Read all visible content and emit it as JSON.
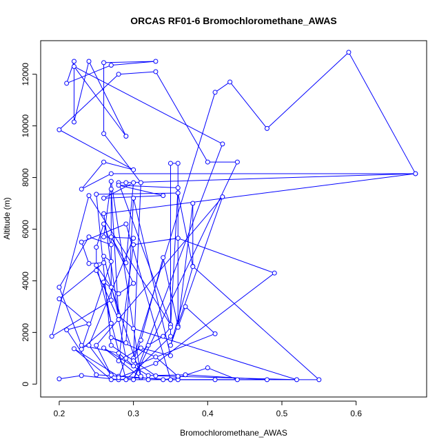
{
  "chart_data": {
    "type": "line",
    "title": "ORCAS RF01-6 Bromochloromethane_AWAS",
    "xlabel": "Bromochloromethane_AWAS",
    "ylabel": "Altitude (m)",
    "xlim": [
      0.175,
      0.695
    ],
    "ylim": [
      -500,
      13300
    ],
    "xticks": [
      0.2,
      0.3,
      0.4,
      0.5,
      0.6
    ],
    "xtick_labels": [
      "0.2",
      "0.3",
      "0.4",
      "0.5",
      "0.6"
    ],
    "yticks": [
      0,
      2000,
      4000,
      6000,
      8000,
      10000,
      12000
    ],
    "ytick_labels": [
      "0",
      "2000",
      "4000",
      "6000",
      "8000",
      "10000",
      "12000"
    ],
    "grid": false,
    "series_color": "#0000ff",
    "series": [
      {
        "marker": "open-circle",
        "points": [
          [
            0.2,
            200
          ],
          [
            0.23,
            330
          ],
          [
            0.28,
            170
          ],
          [
            0.31,
            250
          ],
          [
            0.34,
            170
          ],
          [
            0.36,
            250
          ],
          [
            0.4,
            630
          ],
          [
            0.44,
            170
          ],
          [
            0.35,
            170
          ],
          [
            0.28,
            300
          ],
          [
            0.22,
            1370
          ],
          [
            0.27,
            170
          ],
          [
            0.32,
            170
          ],
          [
            0.36,
            170
          ],
          [
            0.41,
            170
          ],
          [
            0.48,
            170
          ],
          [
            0.37,
            360
          ],
          [
            0.32,
            330
          ],
          [
            0.26,
            1400
          ],
          [
            0.31,
            250
          ],
          [
            0.25,
            360
          ],
          [
            0.21,
            2100
          ],
          [
            0.24,
            2330
          ],
          [
            0.2,
            3300
          ],
          [
            0.26,
            4700
          ],
          [
            0.24,
            4670
          ],
          [
            0.23,
            5500
          ],
          [
            0.29,
            6200
          ],
          [
            0.35,
            170
          ],
          [
            0.55,
            170
          ],
          [
            0.38,
            4560
          ],
          [
            0.36,
            7400
          ],
          [
            0.25,
            7350
          ],
          [
            0.27,
            1500
          ],
          [
            0.33,
            320
          ],
          [
            0.52,
            170
          ],
          [
            0.3,
            2150
          ],
          [
            0.28,
            2650
          ],
          [
            0.27,
            7550
          ],
          [
            0.27,
            3250
          ],
          [
            0.19,
            1850
          ],
          [
            0.24,
            7300
          ],
          [
            0.35,
            2300
          ],
          [
            0.28,
            7800
          ],
          [
            0.29,
            7800
          ],
          [
            0.68,
            8150
          ],
          [
            0.27,
            8150
          ],
          [
            0.23,
            7550
          ],
          [
            0.26,
            8600
          ],
          [
            0.3,
            8300
          ],
          [
            0.2,
            9850
          ],
          [
            0.28,
            12000
          ],
          [
            0.33,
            12100
          ],
          [
            0.4,
            8600
          ],
          [
            0.44,
            8600
          ],
          [
            0.3,
            170
          ],
          [
            0.42,
            9300
          ],
          [
            0.22,
            12300
          ],
          [
            0.29,
            9600
          ],
          [
            0.24,
            12500
          ],
          [
            0.22,
            10150
          ],
          [
            0.22,
            12500
          ],
          [
            0.21,
            11650
          ],
          [
            0.27,
            12350
          ],
          [
            0.33,
            12500
          ],
          [
            0.26,
            12450
          ],
          [
            0.26,
            9700
          ],
          [
            0.31,
            7800
          ],
          [
            0.3,
            1000
          ],
          [
            0.41,
            11300
          ],
          [
            0.43,
            11700
          ],
          [
            0.48,
            9900
          ],
          [
            0.59,
            12850
          ],
          [
            0.68,
            8150
          ],
          [
            0.26,
            6600
          ],
          [
            0.28,
            2650
          ],
          [
            0.26,
            4950
          ],
          [
            0.27,
            4750
          ],
          [
            0.23,
            1350
          ],
          [
            0.27,
            2350
          ],
          [
            0.26,
            3950
          ],
          [
            0.28,
            3500
          ],
          [
            0.3,
            3900
          ],
          [
            0.27,
            5700
          ],
          [
            0.29,
            4700
          ],
          [
            0.3,
            7800
          ],
          [
            0.26,
            7200
          ],
          [
            0.34,
            7300
          ],
          [
            0.28,
            7700
          ],
          [
            0.36,
            7600
          ],
          [
            0.35,
            2200
          ],
          [
            0.34,
            1850
          ],
          [
            0.32,
            1500
          ],
          [
            0.3,
            900
          ],
          [
            0.31,
            1700
          ],
          [
            0.34,
            4900
          ],
          [
            0.36,
            2250
          ],
          [
            0.38,
            7000
          ],
          [
            0.38,
            4550
          ],
          [
            0.35,
            1500
          ],
          [
            0.42,
            7250
          ],
          [
            0.25,
            1500
          ],
          [
            0.27,
            350
          ],
          [
            0.24,
            1500
          ],
          [
            0.3,
            5650
          ],
          [
            0.26,
            5700
          ],
          [
            0.27,
            7850
          ],
          [
            0.31,
            300
          ],
          [
            0.27,
            3750
          ],
          [
            0.25,
            4600
          ],
          [
            0.29,
            170
          ],
          [
            0.35,
            1850
          ],
          [
            0.35,
            8550
          ],
          [
            0.36,
            8550
          ],
          [
            0.36,
            2200
          ],
          [
            0.37,
            3000
          ],
          [
            0.41,
            1950
          ],
          [
            0.3,
            700
          ],
          [
            0.28,
            1200
          ],
          [
            0.23,
            1500
          ],
          [
            0.2,
            3750
          ],
          [
            0.24,
            5700
          ],
          [
            0.27,
            5400
          ],
          [
            0.26,
            6200
          ],
          [
            0.25,
            5300
          ],
          [
            0.25,
            4400
          ],
          [
            0.28,
            2500
          ],
          [
            0.29,
            1000
          ],
          [
            0.28,
            250
          ],
          [
            0.33,
            800
          ],
          [
            0.49,
            4300
          ],
          [
            0.36,
            5650
          ],
          [
            0.3,
            5400
          ],
          [
            0.28,
            900
          ],
          [
            0.31,
            1400
          ],
          [
            0.35,
            1100
          ],
          [
            0.3,
            7200
          ],
          [
            0.29,
            1600
          ],
          [
            0.27,
            1800
          ],
          [
            0.33,
            1050
          ],
          [
            0.36,
            300
          ]
        ]
      }
    ]
  }
}
